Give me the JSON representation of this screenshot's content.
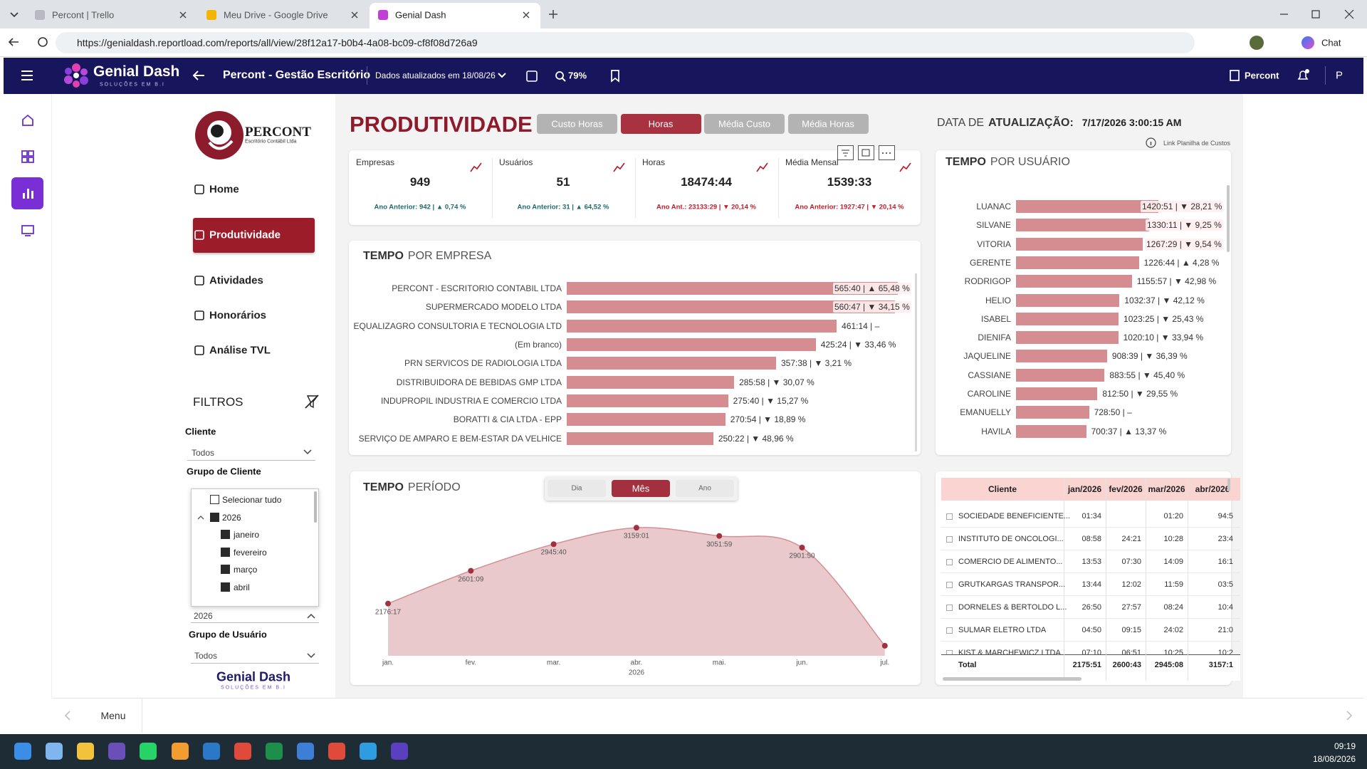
{
  "browser": {
    "tabs": [
      {
        "title": "Percont | Trello",
        "active": false
      },
      {
        "title": "Meu Drive - Google Drive",
        "active": false
      },
      {
        "title": "Genial Dash",
        "active": true
      }
    ],
    "url": "https://genialdash.reportload.com/reports/all/view/28f12a17-b0b4-4a08-bc09-cf8f08d726a9",
    "chat": "Chat"
  },
  "app_bar": {
    "brand": "Genial Dash",
    "brand_sub": "SOLUÇÕES EM B.I",
    "report": "Percont - Gestão Escritório",
    "updated": "Dados atualizados em 18/08/26",
    "zoom": "79%",
    "org": "Percont",
    "user": "P"
  },
  "sidebar": {
    "logo": "PERCONT",
    "logo_sub": "Escritório Contábil Ltda",
    "nav": [
      {
        "label": "Home",
        "active": false
      },
      {
        "label": "Produtividade",
        "active": true
      },
      {
        "label": "Atividades",
        "active": false
      },
      {
        "label": "Honorários",
        "active": false
      },
      {
        "label": "Análise TVL",
        "active": false
      }
    ],
    "filters_title": "FILTROS",
    "cliente_label": "Cliente",
    "cliente_value": "Todos",
    "grupo_cliente_label": "Grupo de Cliente",
    "dropdown": [
      "Selecionar tudo",
      "2026",
      "janeiro",
      "fevereiro",
      "março",
      "abril"
    ],
    "ano_value": "2026",
    "grupo_usuario_label": "Grupo de Usuário",
    "grupo_usuario_value": "Todos",
    "footer": "Genial Dash",
    "footer_sub": "SOLUÇÕES EM B.I"
  },
  "report": {
    "title": "PRODUTIVIDADE",
    "tabs": [
      {
        "label": "Custo Horas",
        "active": false
      },
      {
        "label": "Horas",
        "active": true
      },
      {
        "label": "Média Custo",
        "active": false
      },
      {
        "label": "Média Horas",
        "active": false
      }
    ],
    "update_light": "DATA DE",
    "update_bold": "ATUALIZAÇÃO:",
    "update_value": "7/17/2026 3:00:15 AM",
    "link": "Link Planilha de Custos",
    "kpis": [
      {
        "label": "Empresas",
        "value": "949",
        "note": "Ano Anterior: 942 | ▲ 0,74 %",
        "note_color": "#1d6a70"
      },
      {
        "label": "Usuários",
        "value": "51",
        "note": "Ano Anterior: 31 | ▲ 64,52 %",
        "note_color": "#1d6a70"
      },
      {
        "label": "Horas",
        "value": "18474:44",
        "note": "Ano Ant.: 23133:29 | ▼ 20,14 %",
        "note_color": "#c0202e"
      },
      {
        "label": "Média Mensal",
        "value": "1539:33",
        "note": "Ano Anterior: 1927:47 | ▼ 20,14 %",
        "note_color": "#c0202e"
      }
    ]
  },
  "tempo_empresa": {
    "type": "bar",
    "title_bold": "TEMPO",
    "title": "POR EMPRESA",
    "categories": [
      "PERCONT - ESCRITORIO CONTABIL LTDA",
      "SUPERMERCADO MODELO LTDA",
      "EQUALIZAGRO CONSULTORIA E TECNOLOGIA LTD",
      "(Em branco)",
      "PRN SERVICOS DE RADIOLOGIA LTDA",
      "DISTRIBUIDORA DE BEBIDAS GMP LTDA",
      "INDUPROPIL INDUSTRIA E COMERCIO LTDA",
      "BORATTI & CIA LTDA - EPP",
      "SERVIÇO DE AMPARO E BEM-ESTAR DA VELHICE"
    ],
    "values": [
      565.67,
      560.78,
      461.23,
      425.4,
      357.63,
      285.97,
      275.67,
      270.9,
      250.37
    ],
    "value_labels": [
      "565:40 | ▲ 65,48 %",
      "560:47 | ▼ 34,15 %",
      "461:14 | –",
      "425:24 | ▼ 33,46 %",
      "357:38 | ▼ 3,21 %",
      "285:58 | ▼ 30,07 %",
      "275:40 | ▼ 15,27 %",
      "270:54 | ▼ 18,89 %",
      "250:22 | ▼ 48,96 %"
    ],
    "color": "#d68d91"
  },
  "tempo_usuario": {
    "type": "bar",
    "title_bold": "TEMPO",
    "title": "POR USUÁRIO",
    "categories": [
      "LUANAC",
      "SILVANE",
      "VITORIA",
      "GERENTE",
      "RODRIGOP",
      "HELIO",
      "ISABEL",
      "DIENIFA",
      "JAQUELINE",
      "CASSIANE",
      "CAROLINE",
      "EMANUELLY",
      "HAVILA"
    ],
    "values": [
      1420.85,
      1330.18,
      1267.48,
      1226.73,
      1155.95,
      1032.62,
      1023.42,
      1020.17,
      908.65,
      883.92,
      812.83,
      728.83,
      700.62
    ],
    "value_labels": [
      "1420:51 | ▼ 28,21 %",
      "1330:11 | ▼ 9,25 %",
      "1267:29 | ▼ 9,54 %",
      "1226:44 | ▲ 4,28 %",
      "1155:57 | ▼ 42,98 %",
      "1032:37 | ▼ 42,12 %",
      "1023:25 | ▼ 25,43 %",
      "1020:10 | ▼ 33,94 %",
      "908:39 | ▼ 36,39 %",
      "883:55 | ▼ 45,40 %",
      "812:50 | ▼ 29,55 %",
      "728:50 | –",
      "700:37 | ▲ 13,37 %"
    ],
    "color": "#d68d91"
  },
  "tempo_periodo": {
    "type": "line",
    "title_bold": "TEMPO",
    "title": "PERÍODO",
    "toggle": [
      {
        "label": "Dia",
        "active": false
      },
      {
        "label": "Mês",
        "active": true
      },
      {
        "label": "Ano",
        "active": false
      }
    ],
    "categories": [
      "jan.",
      "fev.",
      "mar.",
      "abr.",
      "mai.",
      "jun.",
      "jul."
    ],
    "values": [
      2176.28,
      2601.15,
      2945.67,
      3159.02,
      3051.98,
      2901.83,
      1630
    ],
    "value_labels": [
      "2176:17",
      "2601:09",
      "2945:40",
      "3159:01",
      "3051:59",
      "2901:50",
      null
    ],
    "ylim": [
      1500,
      3400
    ],
    "xlabel": "2026",
    "color": "#a3303e"
  },
  "table": {
    "columns": [
      "Cliente",
      "jan/2026",
      "fev/2026",
      "mar/2026",
      "abr/2026"
    ],
    "rows": [
      [
        "SOCIEDADE BENEFICIENTE...",
        "01:34",
        null,
        "01:20",
        "94:5"
      ],
      [
        "INSTITUTO DE ONCOLOGI...",
        "08:58",
        "24:21",
        "10:28",
        "23:4"
      ],
      [
        "COMERCIO DE ALIMENTO...",
        "13:53",
        "07:30",
        "14:09",
        "16:1"
      ],
      [
        "GRUTKARGAS TRANSPOR...",
        "13:44",
        "12:02",
        "11:59",
        "03:5"
      ],
      [
        "DORNELES & BERTOLDO L...",
        "26:50",
        "27:57",
        "08:24",
        "10:4"
      ],
      [
        "SULMAR ELETRO LTDA",
        "04:50",
        "09:15",
        "24:02",
        "21:0"
      ],
      [
        "KIST & MARCHEWICZ LTDA",
        "07:10",
        "06:51",
        "10:25",
        "10:2"
      ]
    ],
    "total": [
      "Total",
      "2175:51",
      "2600:43",
      "2945:08",
      "3157:1"
    ]
  },
  "footer_bar": {
    "menu": "Menu"
  },
  "taskbar": {
    "time": "09:19",
    "date": "18/08/2026"
  }
}
